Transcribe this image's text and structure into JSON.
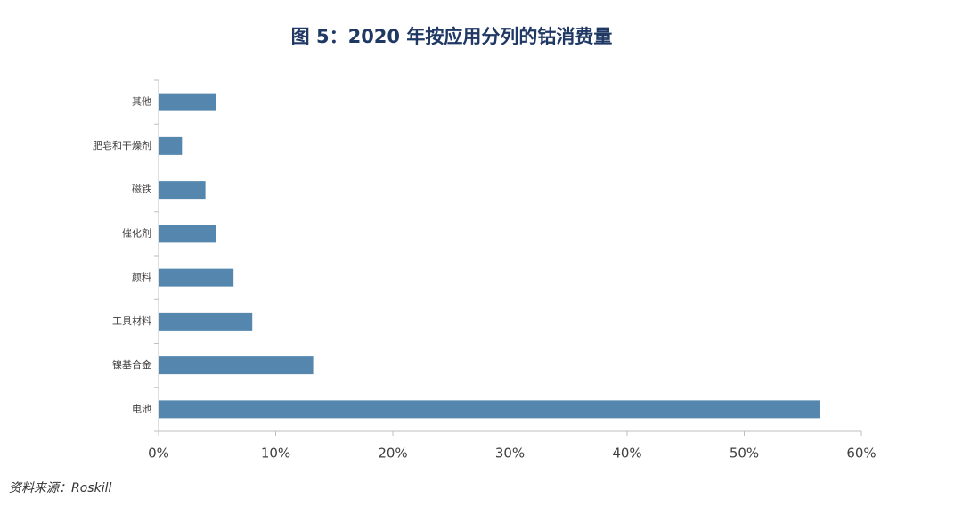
{
  "chart_data": {
    "type": "barh",
    "title": "图 5：2020 年按应用分列的钴消费量",
    "categories": [
      "其他",
      "肥皂和干燥剂",
      "磁铁",
      "催化剂",
      "颜料",
      "工具材料",
      "镍基合金",
      "电池"
    ],
    "values": [
      4.9,
      2.0,
      4.0,
      4.9,
      6.4,
      8.0,
      13.2,
      56.5
    ],
    "color": "#5486ae",
    "xlim": [
      0,
      60
    ],
    "xticks": [
      {
        "value": 0,
        "label": "0%"
      },
      {
        "value": 10,
        "label": "10%"
      },
      {
        "value": 20,
        "label": "20%"
      },
      {
        "value": 30,
        "label": "30%"
      },
      {
        "value": 40,
        "label": "40%"
      },
      {
        "value": 50,
        "label": "50%"
      },
      {
        "value": 60,
        "label": "60%"
      }
    ],
    "grid": false,
    "source": "资料来源：Roskill"
  }
}
